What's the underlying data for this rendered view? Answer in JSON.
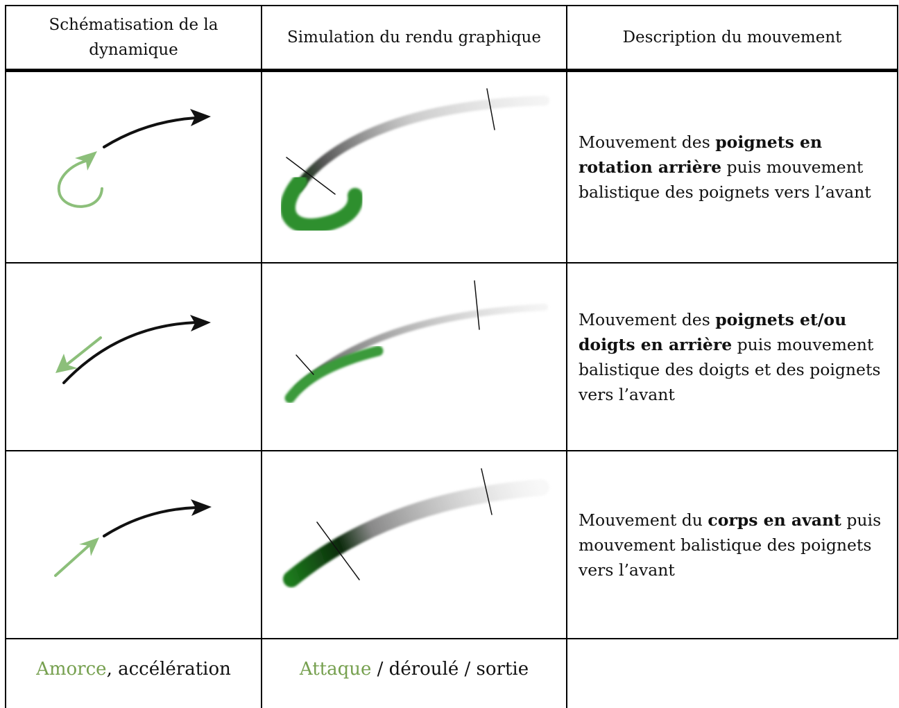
{
  "table": {
    "header": [
      "Schématisation de la dynamique",
      "Simulation du rendu graphique",
      "Description du mouvement"
    ],
    "rows": [
      {
        "description": [
          {
            "text": "Mouvement des ",
            "bold": false
          },
          {
            "text": "poignets en rotation arrière",
            "bold": true
          },
          {
            "text": " puis mouvement balistique des poignets vers l’avant",
            "bold": false
          }
        ]
      },
      {
        "description": [
          {
            "text": "Mouvement des ",
            "bold": false
          },
          {
            "text": "poignets et/ou doigts en arrière",
            "bold": true
          },
          {
            "text": " puis mouvement balistique des doigts et des poignets vers l’avant",
            "bold": false
          }
        ]
      },
      {
        "description": [
          {
            "text": "Mouvement du ",
            "bold": false
          },
          {
            "text": "corps en avant",
            "bold": true
          },
          {
            "text": " puis mouvement balistique des poignets vers l’avant",
            "bold": false
          }
        ]
      }
    ],
    "footer": [
      [
        {
          "text": "Amorce",
          "color": "#76a04f"
        },
        {
          "text": ", accélération"
        }
      ],
      [
        {
          "text": "Attaque",
          "color": "#76a04f"
        },
        {
          "text": " / déroulé / sortie"
        }
      ]
    ]
  }
}
